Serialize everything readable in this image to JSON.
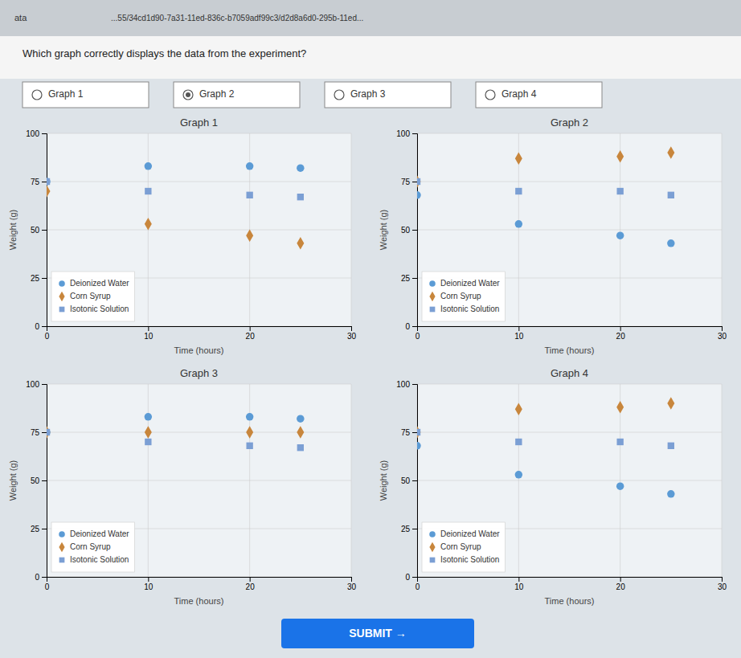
{
  "page": {
    "url_label": "ata",
    "url": "...55/34cd1d90-7a31-11ed-836c-b7059adf99c3/d2d8a6d0-295b-11ed...",
    "question": "Which graph correctly displays the data from the experiment?",
    "options": [
      "Graph 1",
      "Graph 2",
      "Graph 3",
      "Graph 4"
    ],
    "selected": "Graph 2",
    "submit": "SUBMIT →"
  },
  "chart_data": [
    {
      "type": "scatter",
      "title": "Graph 1",
      "x_label": "Time (hours)",
      "y_label": "Weight (g)",
      "x": [
        0,
        10,
        20,
        25
      ],
      "series": [
        {
          "name": "Deionized Water",
          "color": "#5b9bd5",
          "marker": "circle",
          "values": [
            75,
            83,
            83,
            82
          ]
        },
        {
          "name": "Corn Syrup",
          "color": "#c8863c",
          "marker": "diamond",
          "values": [
            70,
            53,
            47,
            43
          ]
        },
        {
          "name": "Isotonic Solution",
          "color": "#7b9fd4",
          "marker": "square",
          "values": [
            75,
            70,
            68,
            67
          ]
        }
      ],
      "xlim": [
        0,
        30
      ],
      "ylim": [
        0,
        100
      ],
      "xticks": [
        0,
        10,
        20,
        30
      ],
      "yticks": [
        0,
        25,
        50,
        75,
        100
      ],
      "grid": true,
      "legend": "lower left"
    },
    {
      "type": "scatter",
      "title": "Graph 2",
      "x_label": "Time (hours)",
      "y_label": "Weight (g)",
      "x": [
        0,
        10,
        20,
        25
      ],
      "series": [
        {
          "name": "Deionized Water",
          "color": "#5b9bd5",
          "marker": "circle",
          "values": [
            68,
            53,
            47,
            43
          ]
        },
        {
          "name": "Corn Syrup",
          "color": "#c8863c",
          "marker": "diamond",
          "values": [
            75,
            87,
            88,
            90
          ]
        },
        {
          "name": "Isotonic Solution",
          "color": "#7b9fd4",
          "marker": "square",
          "values": [
            75,
            70,
            70,
            68
          ]
        }
      ],
      "xlim": [
        0,
        30
      ],
      "ylim": [
        0,
        100
      ],
      "xticks": [
        0,
        10,
        20,
        30
      ],
      "yticks": [
        0,
        25,
        50,
        75,
        100
      ],
      "grid": true,
      "legend": "lower left"
    },
    {
      "type": "scatter",
      "title": "Graph 3",
      "x_label": "Time (hours)",
      "y_label": "Weight (g)",
      "x": [
        0,
        10,
        20,
        25
      ],
      "series": [
        {
          "name": "Deionized Water",
          "color": "#5b9bd5",
          "marker": "circle",
          "values": [
            75,
            83,
            83,
            82
          ]
        },
        {
          "name": "Corn Syrup",
          "color": "#c8863c",
          "marker": "diamond",
          "values": [
            75,
            75,
            75,
            75
          ]
        },
        {
          "name": "Isotonic Solution",
          "color": "#7b9fd4",
          "marker": "square",
          "values": [
            75,
            70,
            68,
            67
          ]
        }
      ],
      "xlim": [
        0,
        30
      ],
      "ylim": [
        0,
        100
      ],
      "xticks": [
        0,
        10,
        20,
        30
      ],
      "yticks": [
        0,
        25,
        50,
        75,
        100
      ],
      "grid": true,
      "legend": "lower left"
    },
    {
      "type": "scatter",
      "title": "Graph 4",
      "x_label": "Time (hours)",
      "y_label": "Weight (g)",
      "x": [
        0,
        10,
        20,
        25
      ],
      "series": [
        {
          "name": "Deionized Water",
          "color": "#5b9bd5",
          "marker": "circle",
          "values": [
            68,
            53,
            47,
            43
          ]
        },
        {
          "name": "Corn Syrup",
          "color": "#c8863c",
          "marker": "diamond",
          "values": [
            75,
            87,
            88,
            90
          ]
        },
        {
          "name": "Isotonic Solution",
          "color": "#7b9fd4",
          "marker": "square",
          "values": [
            75,
            70,
            70,
            68
          ]
        }
      ],
      "xlim": [
        0,
        30
      ],
      "ylim": [
        0,
        100
      ],
      "xticks": [
        0,
        10,
        20,
        30
      ],
      "yticks": [
        0,
        25,
        50,
        75,
        100
      ],
      "grid": true,
      "legend": "lower left"
    }
  ]
}
